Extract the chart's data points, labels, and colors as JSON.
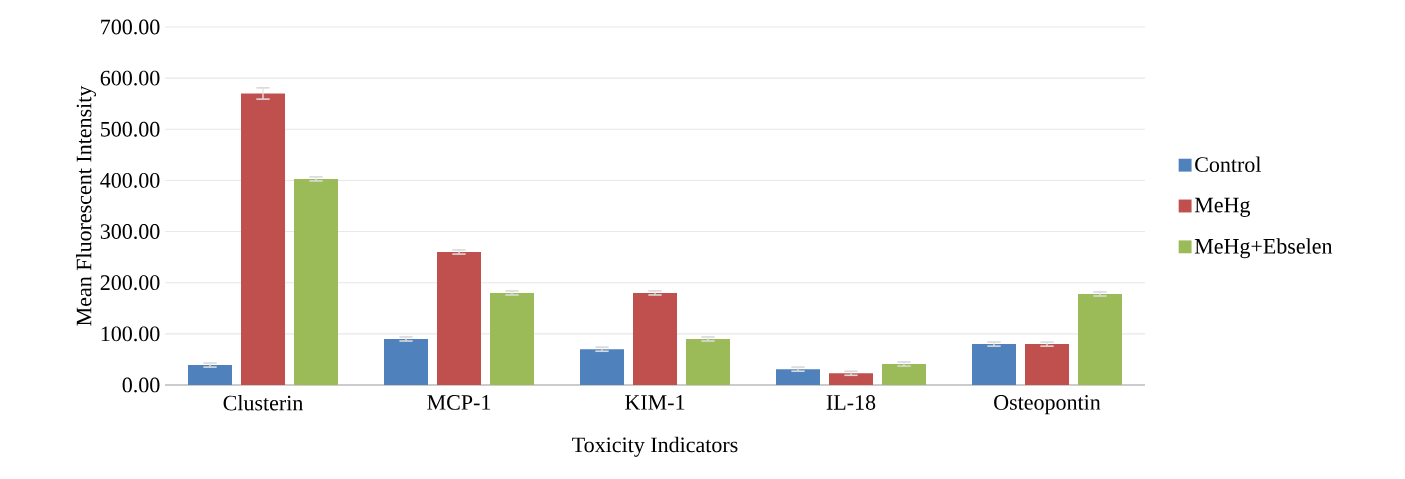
{
  "chart_data": {
    "type": "bar",
    "xlabel": "Toxicity Indicators",
    "ylabel": "Mean Fluorescent Intensity",
    "categories": [
      "Clusterin",
      "MCP-1",
      "KIM-1",
      "IL-18",
      "Osteopontin"
    ],
    "series": [
      {
        "name": "Control",
        "color": "#4f81bd",
        "values": [
          39,
          90,
          70,
          31,
          80
        ],
        "errors": [
          4,
          4,
          4,
          4,
          4
        ]
      },
      {
        "name": "MeHg",
        "color": "#c0504d",
        "values": [
          570,
          260,
          180,
          23,
          80
        ],
        "errors": [
          11,
          4,
          4,
          4,
          4
        ]
      },
      {
        "name": "MeHg+Ebselen",
        "color": "#9bbb59",
        "values": [
          403,
          180,
          90,
          41,
          178
        ],
        "errors": [
          4,
          4,
          4,
          4,
          4
        ]
      }
    ],
    "ylim": [
      0,
      700
    ],
    "yticks": [
      {
        "value": 0,
        "label": "0.00"
      },
      {
        "value": 100,
        "label": "100.00"
      },
      {
        "value": 200,
        "label": "200.00"
      },
      {
        "value": 300,
        "label": "300.00"
      },
      {
        "value": 400,
        "label": "400.00"
      },
      {
        "value": 500,
        "label": "500.00"
      },
      {
        "value": 600,
        "label": "600.00"
      },
      {
        "value": 700,
        "label": "700.00"
      }
    ],
    "grid": "y",
    "legend": "right"
  }
}
